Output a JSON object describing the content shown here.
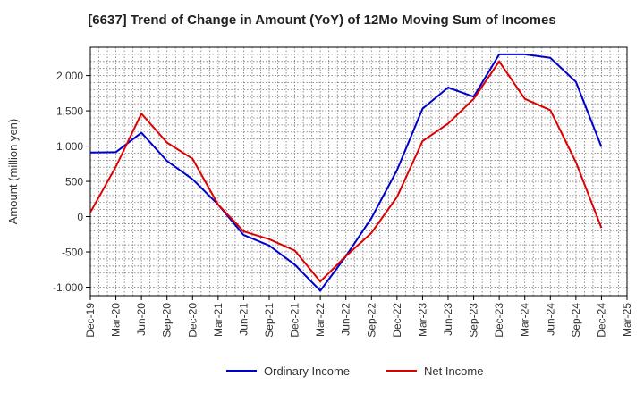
{
  "chart_data": {
    "type": "line",
    "title": "[6637]  Trend of Change in Amount (YoY) of 12Mo Moving Sum of Incomes",
    "xlabel": "",
    "ylabel": "Amount (million yen)",
    "categories": [
      "Dec-19",
      "Mar-20",
      "Jun-20",
      "Sep-20",
      "Dec-20",
      "Mar-21",
      "Jun-21",
      "Sep-21",
      "Dec-21",
      "Mar-22",
      "Jun-22",
      "Sep-22",
      "Dec-22",
      "Mar-23",
      "Jun-23",
      "Sep-23",
      "Dec-23",
      "Mar-24",
      "Jun-24",
      "Sep-24",
      "Dec-24",
      "Mar-25"
    ],
    "series": [
      {
        "name": "Ordinary Income",
        "color": "#0000cc",
        "values": [
          910,
          915,
          1190,
          790,
          530,
          170,
          -260,
          -410,
          -680,
          -1050,
          -560,
          -20,
          660,
          1530,
          1830,
          1700,
          2300,
          2300,
          2250,
          1910,
          990,
          null
        ]
      },
      {
        "name": "Net Income",
        "color": "#dd0000",
        "values": [
          60,
          710,
          1460,
          1050,
          820,
          170,
          -210,
          -320,
          -480,
          -920,
          -560,
          -230,
          280,
          1070,
          1320,
          1670,
          2200,
          1670,
          1510,
          770,
          -160,
          null
        ]
      }
    ],
    "yticks": [
      -1000,
      -500,
      0,
      500,
      1000,
      1500,
      2000
    ],
    "ytick_labels": [
      "-1,000",
      "-500",
      "0",
      "500",
      "1,000",
      "1,500",
      "2,000"
    ],
    "ylim": [
      -1120,
      2400
    ],
    "grid": true,
    "legend_position": "bottom"
  }
}
